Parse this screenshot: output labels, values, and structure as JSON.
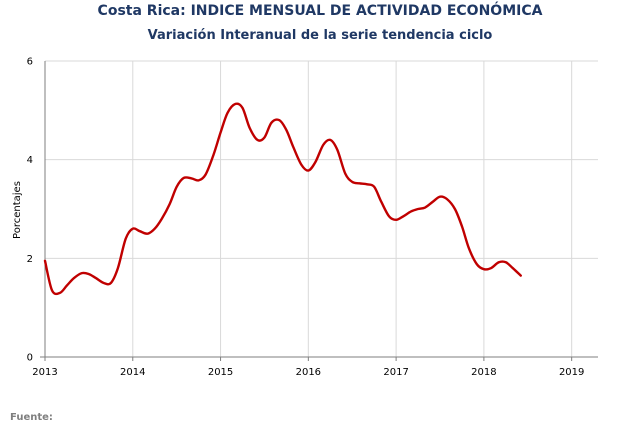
{
  "chart_data": {
    "type": "line",
    "title": "Costa Rica: INDICE MENSUAL DE ACTIVIDAD ECONÓMICA",
    "subtitle": "Variación Interanual de la serie tendencia ciclo",
    "xlabel": "",
    "ylabel": "Porcentajes",
    "xlim": [
      2013.0,
      2019.3
    ],
    "ylim": [
      0,
      6
    ],
    "x_ticks": [
      "2013",
      "2014",
      "2015",
      "2016",
      "2017",
      "2018",
      "2019"
    ],
    "y_ticks": [
      "0",
      "2",
      "4",
      "6"
    ],
    "grid": true,
    "legend": "none",
    "series": [
      {
        "color": "#c00000",
        "points": [
          [
            2013.0,
            1.95
          ],
          [
            2013.08,
            1.35
          ],
          [
            2013.17,
            1.3
          ],
          [
            2013.25,
            1.45
          ],
          [
            2013.33,
            1.6
          ],
          [
            2013.42,
            1.7
          ],
          [
            2013.5,
            1.68
          ],
          [
            2013.58,
            1.6
          ],
          [
            2013.67,
            1.5
          ],
          [
            2013.75,
            1.5
          ],
          [
            2013.83,
            1.8
          ],
          [
            2013.92,
            2.4
          ],
          [
            2014.0,
            2.6
          ],
          [
            2014.08,
            2.55
          ],
          [
            2014.17,
            2.5
          ],
          [
            2014.25,
            2.6
          ],
          [
            2014.33,
            2.8
          ],
          [
            2014.42,
            3.1
          ],
          [
            2014.5,
            3.45
          ],
          [
            2014.58,
            3.63
          ],
          [
            2014.67,
            3.62
          ],
          [
            2014.75,
            3.58
          ],
          [
            2014.83,
            3.7
          ],
          [
            2014.92,
            4.1
          ],
          [
            2015.0,
            4.55
          ],
          [
            2015.08,
            4.95
          ],
          [
            2015.17,
            5.13
          ],
          [
            2015.25,
            5.05
          ],
          [
            2015.33,
            4.65
          ],
          [
            2015.42,
            4.4
          ],
          [
            2015.5,
            4.45
          ],
          [
            2015.58,
            4.75
          ],
          [
            2015.67,
            4.8
          ],
          [
            2015.75,
            4.6
          ],
          [
            2015.83,
            4.25
          ],
          [
            2015.92,
            3.9
          ],
          [
            2016.0,
            3.78
          ],
          [
            2016.08,
            3.95
          ],
          [
            2016.17,
            4.3
          ],
          [
            2016.25,
            4.4
          ],
          [
            2016.33,
            4.2
          ],
          [
            2016.42,
            3.72
          ],
          [
            2016.5,
            3.55
          ],
          [
            2016.58,
            3.52
          ],
          [
            2016.67,
            3.5
          ],
          [
            2016.75,
            3.45
          ],
          [
            2016.83,
            3.15
          ],
          [
            2016.92,
            2.85
          ],
          [
            2017.0,
            2.78
          ],
          [
            2017.08,
            2.85
          ],
          [
            2017.17,
            2.95
          ],
          [
            2017.25,
            3.0
          ],
          [
            2017.33,
            3.03
          ],
          [
            2017.42,
            3.15
          ],
          [
            2017.5,
            3.25
          ],
          [
            2017.58,
            3.2
          ],
          [
            2017.67,
            3.0
          ],
          [
            2017.75,
            2.65
          ],
          [
            2017.83,
            2.2
          ],
          [
            2017.92,
            1.88
          ],
          [
            2018.0,
            1.78
          ],
          [
            2018.08,
            1.8
          ],
          [
            2018.17,
            1.92
          ],
          [
            2018.25,
            1.92
          ],
          [
            2018.33,
            1.8
          ],
          [
            2018.42,
            1.65
          ]
        ]
      }
    ]
  },
  "footer": {
    "source_label": "Fuente:"
  }
}
